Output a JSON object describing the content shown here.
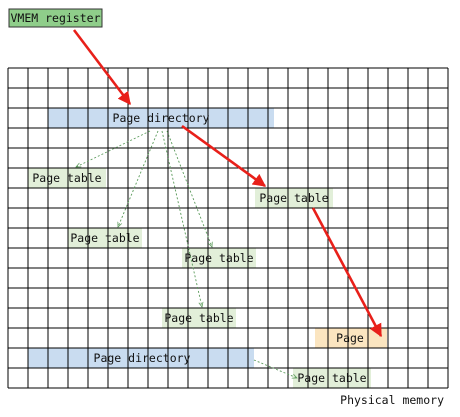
{
  "register": {
    "label": "VMEM register",
    "fill": "#8fce8a",
    "stroke": "#333333"
  },
  "blocks": {
    "page_directory_top": {
      "label": "Page directory",
      "fill": "#c9dcf0"
    },
    "page_directory_bottom": {
      "label": "Page directory",
      "fill": "#c9dcf0"
    },
    "page_table_1": {
      "label": "Page table",
      "fill": "#e2efd9"
    },
    "page_table_2": {
      "label": "Page table",
      "fill": "#e2efd9"
    },
    "page_table_3": {
      "label": "Page table",
      "fill": "#e2efd9"
    },
    "page_table_4": {
      "label": "Page table",
      "fill": "#e2efd9"
    },
    "page_table_5": {
      "label": "Page table",
      "fill": "#e2efd9"
    },
    "page_table_6": {
      "label": "Page table",
      "fill": "#e2efd9"
    },
    "page": {
      "label": "Page",
      "fill": "#fbe5c0"
    }
  },
  "memory_label": "Physical memory",
  "colors": {
    "grid": "#000000",
    "active_arrow": "#e8201a",
    "dotted_arrow": "#5a9a5a"
  }
}
